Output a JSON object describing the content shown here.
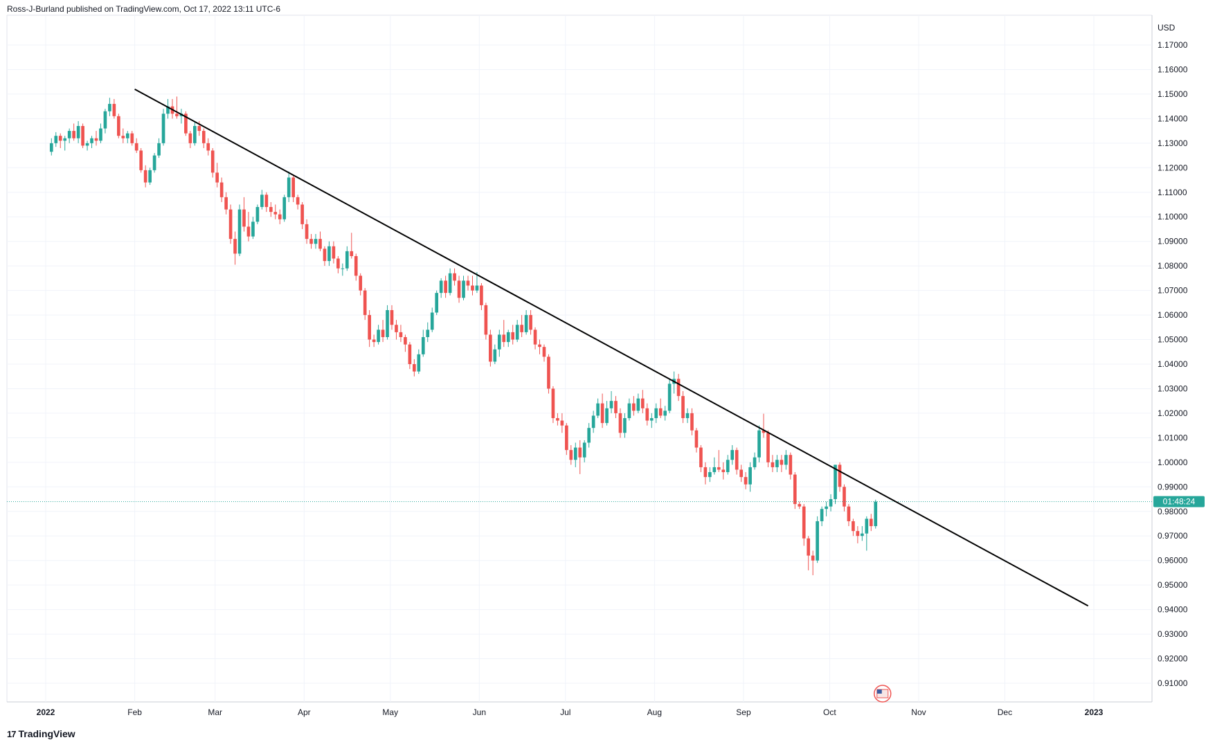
{
  "header": {
    "publisher_line": "Ross-J-Burland published on TradingView.com, Oct 17, 2022 13:11 UTC-6"
  },
  "footer": {
    "brand": "TradingView",
    "logo_glyph": "17"
  },
  "price_badge": {
    "label": "01:48:24",
    "color": "#26a69a"
  },
  "colors": {
    "up": "#26a69a",
    "down": "#ef5350",
    "trendline": "#000000",
    "grid": "#f0f3fa",
    "text": "#131722"
  },
  "chart_data": {
    "type": "candlestick",
    "currency_label": "USD",
    "y_ticks": [
      "1.17000",
      "1.16000",
      "1.15000",
      "1.14000",
      "1.13000",
      "1.12000",
      "1.11000",
      "1.10000",
      "1.09000",
      "1.08000",
      "1.07000",
      "1.06000",
      "1.05000",
      "1.04000",
      "1.03000",
      "1.02000",
      "1.01000",
      "1.00000",
      "0.99000",
      "0.98000",
      "0.97000",
      "0.96000",
      "0.95000",
      "0.94000",
      "0.93000",
      "0.92000",
      "0.91000"
    ],
    "ylim": [
      0.9,
      1.177
    ],
    "x_labels": [
      "2022",
      "Feb",
      "Mar",
      "Apr",
      "May",
      "Jun",
      "Jul",
      "Aug",
      "Sep",
      "Oct",
      "Nov",
      "Dec",
      "2023"
    ],
    "last_price": 0.984,
    "trendline": {
      "start": {
        "date": "2022-02-01",
        "price": 1.152
      },
      "end": {
        "date": "2022-12-30",
        "price": 0.9415
      }
    },
    "grid": true,
    "candles": [
      [
        1.1265,
        1.132,
        1.125,
        1.13
      ],
      [
        1.13,
        1.1345,
        1.1285,
        1.133
      ],
      [
        1.133,
        1.134,
        1.128,
        1.131
      ],
      [
        1.131,
        1.133,
        1.127,
        1.132
      ],
      [
        1.132,
        1.136,
        1.13,
        1.135
      ],
      [
        1.135,
        1.138,
        1.131,
        1.132
      ],
      [
        1.132,
        1.139,
        1.13,
        1.137
      ],
      [
        1.137,
        1.138,
        1.128,
        1.129
      ],
      [
        1.129,
        1.131,
        1.127,
        1.13
      ],
      [
        1.13,
        1.133,
        1.128,
        1.132
      ],
      [
        1.132,
        1.135,
        1.129,
        1.131
      ],
      [
        1.131,
        1.138,
        1.13,
        1.136
      ],
      [
        1.136,
        1.144,
        1.134,
        1.143
      ],
      [
        1.143,
        1.1485,
        1.141,
        1.146
      ],
      [
        1.146,
        1.148,
        1.14,
        1.141
      ],
      [
        1.141,
        1.142,
        1.132,
        1.133
      ],
      [
        1.133,
        1.136,
        1.13,
        1.132
      ],
      [
        1.132,
        1.135,
        1.13,
        1.134
      ],
      [
        1.134,
        1.135,
        1.129,
        1.13
      ],
      [
        1.13,
        1.132,
        1.126,
        1.127
      ],
      [
        1.127,
        1.128,
        1.118,
        1.119
      ],
      [
        1.119,
        1.121,
        1.112,
        1.114
      ],
      [
        1.114,
        1.12,
        1.113,
        1.119
      ],
      [
        1.119,
        1.126,
        1.118,
        1.125
      ],
      [
        1.125,
        1.132,
        1.124,
        1.13
      ],
      [
        1.13,
        1.144,
        1.129,
        1.142
      ],
      [
        1.142,
        1.148,
        1.14,
        1.145
      ],
      [
        1.145,
        1.148,
        1.14,
        1.142
      ],
      [
        1.142,
        1.149,
        1.14,
        1.141
      ],
      [
        1.141,
        1.144,
        1.138,
        1.142
      ],
      [
        1.142,
        1.143,
        1.133,
        1.134
      ],
      [
        1.134,
        1.135,
        1.128,
        1.13
      ],
      [
        1.13,
        1.139,
        1.129,
        1.137
      ],
      [
        1.137,
        1.139,
        1.133,
        1.135
      ],
      [
        1.135,
        1.136,
        1.128,
        1.13
      ],
      [
        1.13,
        1.132,
        1.125,
        1.127
      ],
      [
        1.127,
        1.128,
        1.116,
        1.118
      ],
      [
        1.118,
        1.122,
        1.112,
        1.114
      ],
      [
        1.114,
        1.116,
        1.106,
        1.108
      ],
      [
        1.108,
        1.11,
        1.101,
        1.103
      ],
      [
        1.103,
        1.105,
        1.089,
        1.091
      ],
      [
        1.091,
        1.094,
        1.0805,
        1.085
      ],
      [
        1.085,
        1.105,
        1.084,
        1.103
      ],
      [
        1.103,
        1.108,
        1.094,
        1.096
      ],
      [
        1.096,
        1.102,
        1.09,
        1.092
      ],
      [
        1.092,
        1.1,
        1.091,
        1.098
      ],
      [
        1.098,
        1.105,
        1.097,
        1.104
      ],
      [
        1.104,
        1.111,
        1.103,
        1.109
      ],
      [
        1.109,
        1.11,
        1.102,
        1.104
      ],
      [
        1.104,
        1.106,
        1.1,
        1.102
      ],
      [
        1.102,
        1.105,
        1.099,
        1.101
      ],
      [
        1.101,
        1.103,
        1.097,
        1.099
      ],
      [
        1.099,
        1.109,
        1.098,
        1.108
      ],
      [
        1.108,
        1.1185,
        1.106,
        1.116
      ],
      [
        1.116,
        1.117,
        1.106,
        1.108
      ],
      [
        1.108,
        1.109,
        1.103,
        1.105
      ],
      [
        1.105,
        1.106,
        1.095,
        1.097
      ],
      [
        1.097,
        1.099,
        1.089,
        1.091
      ],
      [
        1.091,
        1.093,
        1.087,
        1.089
      ],
      [
        1.089,
        1.093,
        1.087,
        1.091
      ],
      [
        1.091,
        1.094,
        1.086,
        1.087
      ],
      [
        1.087,
        1.088,
        1.08,
        1.082
      ],
      [
        1.082,
        1.09,
        1.08,
        1.088
      ],
      [
        1.088,
        1.09,
        1.081,
        1.083
      ],
      [
        1.083,
        1.084,
        1.077,
        1.079
      ],
      [
        1.079,
        1.081,
        1.076,
        1.079
      ],
      [
        1.079,
        1.088,
        1.078,
        1.086
      ],
      [
        1.086,
        1.0935,
        1.083,
        1.084
      ],
      [
        1.084,
        1.085,
        1.074,
        1.076
      ],
      [
        1.076,
        1.077,
        1.068,
        1.07
      ],
      [
        1.07,
        1.071,
        1.058,
        1.06
      ],
      [
        1.06,
        1.062,
        1.047,
        1.05
      ],
      [
        1.05,
        1.052,
        1.047,
        1.049
      ],
      [
        1.049,
        1.056,
        1.048,
        1.054
      ],
      [
        1.054,
        1.058,
        1.049,
        1.051
      ],
      [
        1.051,
        1.064,
        1.05,
        1.062
      ],
      [
        1.062,
        1.064,
        1.054,
        1.056
      ],
      [
        1.056,
        1.058,
        1.05,
        1.053
      ],
      [
        1.053,
        1.056,
        1.049,
        1.051
      ],
      [
        1.051,
        1.052,
        1.045,
        1.048
      ],
      [
        1.048,
        1.049,
        1.038,
        1.04
      ],
      [
        1.04,
        1.042,
        1.035,
        1.037
      ],
      [
        1.037,
        1.046,
        1.036,
        1.044
      ],
      [
        1.044,
        1.054,
        1.043,
        1.051
      ],
      [
        1.051,
        1.057,
        1.049,
        1.054
      ],
      [
        1.054,
        1.063,
        1.053,
        1.061
      ],
      [
        1.061,
        1.07,
        1.06,
        1.069
      ],
      [
        1.069,
        1.075,
        1.067,
        1.074
      ],
      [
        1.074,
        1.076,
        1.067,
        1.069
      ],
      [
        1.069,
        1.079,
        1.068,
        1.077
      ],
      [
        1.077,
        1.079,
        1.072,
        1.074
      ],
      [
        1.074,
        1.076,
        1.065,
        1.067
      ],
      [
        1.067,
        1.076,
        1.066,
        1.074
      ],
      [
        1.074,
        1.076,
        1.07,
        1.072
      ],
      [
        1.072,
        1.076,
        1.068,
        1.07
      ],
      [
        1.07,
        1.0775,
        1.069,
        1.072
      ],
      [
        1.072,
        1.073,
        1.062,
        1.064
      ],
      [
        1.064,
        1.065,
        1.05,
        1.052
      ],
      [
        1.052,
        1.054,
        1.039,
        1.041
      ],
      [
        1.041,
        1.048,
        1.04,
        1.046
      ],
      [
        1.046,
        1.054,
        1.043,
        1.052
      ],
      [
        1.052,
        1.058,
        1.047,
        1.049
      ],
      [
        1.049,
        1.054,
        1.047,
        1.053
      ],
      [
        1.053,
        1.056,
        1.048,
        1.05
      ],
      [
        1.05,
        1.058,
        1.049,
        1.056
      ],
      [
        1.056,
        1.06,
        1.051,
        1.053
      ],
      [
        1.053,
        1.062,
        1.052,
        1.06
      ],
      [
        1.06,
        1.062,
        1.052,
        1.054
      ],
      [
        1.054,
        1.055,
        1.046,
        1.048
      ],
      [
        1.048,
        1.05,
        1.044,
        1.047
      ],
      [
        1.047,
        1.048,
        1.041,
        1.043
      ],
      [
        1.043,
        1.044,
        1.028,
        1.03
      ],
      [
        1.03,
        1.031,
        1.016,
        1.018
      ],
      [
        1.018,
        1.02,
        1.015,
        1.017
      ],
      [
        1.017,
        1.02,
        1.012,
        1.015
      ],
      [
        1.015,
        1.016,
        1.003,
        1.005
      ],
      [
        1.005,
        1.007,
        0.999,
        1.001
      ],
      [
        1.001,
        1.008,
        0.998,
        1.006
      ],
      [
        1.006,
        1.009,
        0.9952,
        1.002
      ],
      [
        1.002,
        1.009,
        1.0,
        1.008
      ],
      [
        1.008,
        1.016,
        1.006,
        1.014
      ],
      [
        1.014,
        1.021,
        1.012,
        1.019
      ],
      [
        1.019,
        1.026,
        1.018,
        1.024
      ],
      [
        1.024,
        1.028,
        1.014,
        1.016
      ],
      [
        1.016,
        1.025,
        1.015,
        1.022
      ],
      [
        1.022,
        1.029,
        1.02,
        1.025
      ],
      [
        1.025,
        1.027,
        1.018,
        1.02
      ],
      [
        1.02,
        1.022,
        1.01,
        1.012
      ],
      [
        1.012,
        1.02,
        1.01,
        1.018
      ],
      [
        1.018,
        1.026,
        1.017,
        1.024
      ],
      [
        1.024,
        1.027,
        1.019,
        1.021
      ],
      [
        1.021,
        1.028,
        1.02,
        1.026
      ],
      [
        1.026,
        1.0295,
        1.02,
        1.022
      ],
      [
        1.022,
        1.024,
        1.015,
        1.017
      ],
      [
        1.017,
        1.02,
        1.014,
        1.018
      ],
      [
        1.018,
        1.024,
        1.016,
        1.022
      ],
      [
        1.022,
        1.026,
        1.018,
        1.019
      ],
      [
        1.019,
        1.023,
        1.017,
        1.021
      ],
      [
        1.021,
        1.034,
        1.02,
        1.032
      ],
      [
        1.032,
        1.037,
        1.028,
        1.034
      ],
      [
        1.034,
        1.036,
        1.025,
        1.027
      ],
      [
        1.027,
        1.029,
        1.016,
        1.018
      ],
      [
        1.018,
        1.022,
        1.016,
        1.02
      ],
      [
        1.02,
        1.022,
        1.011,
        1.013
      ],
      [
        1.013,
        1.014,
        1.004,
        1.006
      ],
      [
        1.006,
        1.007,
        0.996,
        0.998
      ],
      [
        0.998,
        1.0,
        0.991,
        0.994
      ],
      [
        0.994,
        0.998,
        0.992,
        0.996
      ],
      [
        0.996,
        1.002,
        0.995,
        0.998
      ],
      [
        0.998,
        1.005,
        0.996,
        0.997
      ],
      [
        0.997,
        1.0,
        0.993,
        0.996
      ],
      [
        0.996,
        1.003,
        0.995,
        1.001
      ],
      [
        1.001,
        1.007,
        0.999,
        1.005
      ],
      [
        1.005,
        1.006,
        0.995,
        0.997
      ],
      [
        0.997,
        0.999,
        0.992,
        0.994
      ],
      [
        0.994,
        0.996,
        0.989,
        0.991
      ],
      [
        0.991,
        1.0,
        0.988,
        0.998
      ],
      [
        0.998,
        1.004,
        0.997,
        1.002
      ],
      [
        1.002,
        1.015,
        1.0,
        1.013
      ],
      [
        1.013,
        1.0198,
        1.01,
        1.012
      ],
      [
        1.012,
        1.013,
        0.998,
        1.0
      ],
      [
        1.0,
        1.003,
        0.996,
        0.998
      ],
      [
        0.998,
        1.003,
        0.996,
        1.001
      ],
      [
        1.001,
        1.003,
        0.996,
        0.999
      ],
      [
        0.999,
        1.005,
        0.997,
        1.003
      ],
      [
        1.003,
        1.004,
        0.993,
        0.995
      ],
      [
        0.995,
        0.996,
        0.981,
        0.983
      ],
      [
        0.983,
        0.984,
        0.981,
        0.982
      ],
      [
        0.982,
        0.983,
        0.966,
        0.969
      ],
      [
        0.969,
        0.97,
        0.956,
        0.962
      ],
      [
        0.962,
        0.964,
        0.954,
        0.96
      ],
      [
        0.96,
        0.978,
        0.959,
        0.976
      ],
      [
        0.976,
        0.982,
        0.974,
        0.981
      ],
      [
        0.981,
        0.984,
        0.978,
        0.982
      ],
      [
        0.982,
        0.987,
        0.98,
        0.985
      ],
      [
        0.985,
        0.999,
        0.983,
        0.999
      ],
      [
        0.999,
        1.0,
        0.988,
        0.99
      ],
      [
        0.99,
        0.991,
        0.98,
        0.982
      ],
      [
        0.982,
        0.983,
        0.974,
        0.976
      ],
      [
        0.976,
        0.977,
        0.97,
        0.972
      ],
      [
        0.972,
        0.974,
        0.967,
        0.97
      ],
      [
        0.97,
        0.974,
        0.968,
        0.971
      ],
      [
        0.971,
        0.978,
        0.964,
        0.977
      ],
      [
        0.977,
        0.979,
        0.972,
        0.974
      ],
      [
        0.974,
        0.9848,
        0.973,
        0.984
      ]
    ]
  }
}
